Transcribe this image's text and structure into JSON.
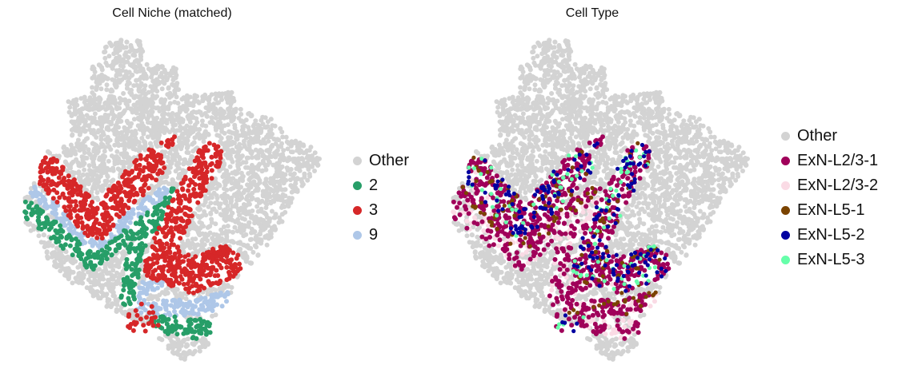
{
  "chart_data": [
    {
      "type": "scatter",
      "title": "Cell Niche (matched)",
      "legend": [
        "Other",
        "2",
        "3",
        "9"
      ],
      "colors": {
        "Other": "#d3d3d3",
        "2": "#279e68",
        "3": "#d62728",
        "9": "#aec7e8"
      },
      "legend_placement": "right",
      "grid": false,
      "axes": false
    },
    {
      "type": "scatter",
      "title": "Cell Type",
      "legend": [
        "Other",
        "ExN-L2/3-1",
        "ExN-L2/3-2",
        "ExN-L5-1",
        "ExN-L5-2",
        "ExN-L5-3"
      ],
      "colors": {
        "Other": "#d3d3d3",
        "ExN-L2/3-1": "#a0005a",
        "ExN-L2/3-2": "#fadbe5",
        "ExN-L5-1": "#7a4300",
        "ExN-L5-2": "#0000a0",
        "ExN-L5-3": "#66ffaa"
      },
      "legend_placement": "right",
      "grid": false,
      "axes": false
    }
  ]
}
